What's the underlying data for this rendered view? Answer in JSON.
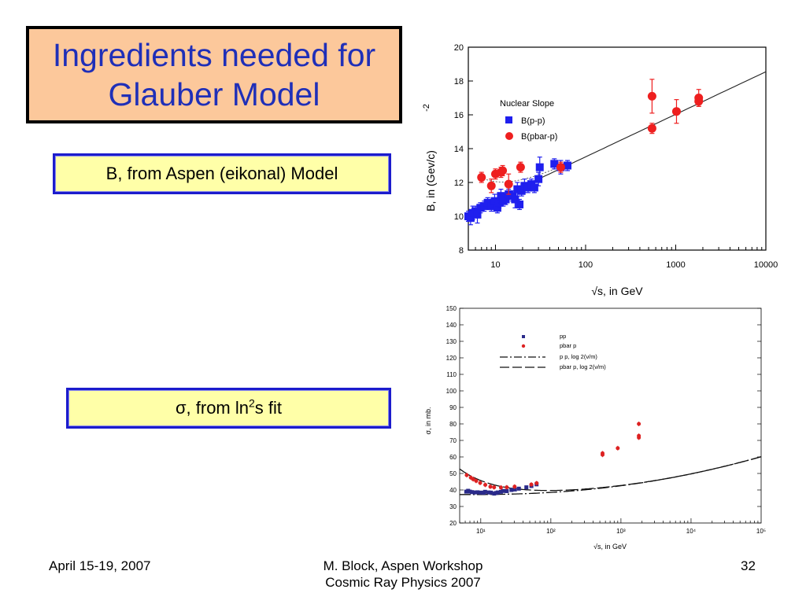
{
  "slide": {
    "title_line1": "Ingredients needed for",
    "title_line2": "Glauber Model",
    "box_b_text": "B, from Aspen (eikonal) Model",
    "box_sigma_symbol": "σ",
    "box_sigma_mid": ", from ln",
    "box_sigma_sup": "2",
    "box_sigma_end": "s fit"
  },
  "footer": {
    "date": "April 15-19, 2007",
    "center_line1": "M. Block, Aspen Workshop",
    "center_line2": "Cosmic Ray Physics 2007",
    "page": "32"
  },
  "chart_data": [
    {
      "type": "scatter",
      "xlabel": "√s, in GeV",
      "ylabel": "B, in (Gev/c)",
      "ylabel_exponent": "-2",
      "x_scale": "log",
      "xlim": [
        5,
        10000
      ],
      "ylim": [
        8,
        20
      ],
      "x_ticks": [
        10,
        100,
        1000,
        10000
      ],
      "x_tick_labels": [
        "10",
        "100",
        "1000",
        "10000"
      ],
      "y_ticks": [
        8,
        10,
        12,
        14,
        16,
        18,
        20
      ],
      "y_tick_labels": [
        "8",
        "10",
        "12",
        "14",
        "16",
        "18",
        "20"
      ],
      "legend_title": "Nuclear Slope",
      "legend_position": "upper-left",
      "series": [
        {
          "name": "B(p-p)",
          "color": "#1f1fee",
          "marker": "square",
          "points": [
            [
              5.0,
              10.0,
              0.3
            ],
            [
              5.3,
              9.9,
              0.4
            ],
            [
              5.6,
              10.2,
              0.4
            ],
            [
              6.0,
              10.3,
              0.3
            ],
            [
              6.3,
              10.1,
              0.5
            ],
            [
              6.8,
              10.5,
              0.3
            ],
            [
              7.5,
              10.6,
              0.3
            ],
            [
              8.2,
              10.8,
              0.3
            ],
            [
              9.0,
              10.6,
              0.3
            ],
            [
              9.8,
              10.9,
              0.4
            ],
            [
              10.5,
              10.5,
              0.3
            ],
            [
              11.0,
              10.8,
              0.3
            ],
            [
              11.5,
              11.2,
              0.4
            ],
            [
              12.2,
              10.9,
              0.3
            ],
            [
              13.0,
              11.0,
              0.3
            ],
            [
              14.0,
              11.3,
              0.3
            ],
            [
              15.5,
              11.2,
              0.3
            ],
            [
              16.5,
              11.0,
              0.5
            ],
            [
              17.5,
              11.6,
              0.4
            ],
            [
              18.5,
              10.7,
              0.3
            ],
            [
              19.5,
              11.5,
              0.3
            ],
            [
              21.0,
              11.8,
              0.4
            ],
            [
              23.0,
              11.7,
              0.3
            ],
            [
              25.0,
              11.9,
              0.3
            ],
            [
              27.0,
              11.7,
              0.3
            ],
            [
              30.0,
              12.2,
              0.4
            ],
            [
              31.0,
              12.9,
              0.6
            ],
            [
              45.0,
              13.1,
              0.3
            ],
            [
              53.0,
              12.9,
              0.4
            ],
            [
              63.0,
              13.0,
              0.3
            ]
          ]
        },
        {
          "name": "B(pbar-p)",
          "color": "#ee1f1f",
          "marker": "circle",
          "points": [
            [
              7.0,
              12.3,
              0.3
            ],
            [
              9.0,
              11.8,
              0.4
            ],
            [
              10.0,
              12.5,
              0.3
            ],
            [
              11.5,
              12.6,
              0.3
            ],
            [
              12.0,
              12.7,
              0.3
            ],
            [
              14.0,
              11.9,
              0.6
            ],
            [
              19.0,
              12.9,
              0.3
            ],
            [
              53.0,
              12.9,
              0.3
            ],
            [
              546.0,
              17.1,
              1.0
            ],
            [
              546.0,
              15.2,
              0.3
            ],
            [
              1020.0,
              16.2,
              0.7
            ],
            [
              1800.0,
              16.8,
              0.3
            ],
            [
              1800.0,
              17.0,
              0.5
            ]
          ]
        }
      ]
    },
    {
      "type": "scatter",
      "xlabel": "√s, in GeV",
      "ylabel": "σ, in mb.",
      "x_scale": "log",
      "xlim": [
        5,
        100000
      ],
      "ylim": [
        20,
        150
      ],
      "x_tick_labels": [
        "10¹",
        "10²",
        "10³",
        "10⁴",
        "10⁵"
      ],
      "y_ticks": [
        20,
        30,
        40,
        50,
        60,
        70,
        80,
        90,
        100,
        110,
        120,
        130,
        140,
        150
      ],
      "legend_position": "upper-left",
      "series": [
        {
          "name": "pp",
          "color": "#2a2a8a",
          "marker": "square",
          "points": [
            [
              6.2,
              39.0
            ],
            [
              6.6,
              39.5
            ],
            [
              7.0,
              39.0
            ],
            [
              7.5,
              38.7
            ],
            [
              8.2,
              38.5
            ],
            [
              9.0,
              38.6
            ],
            [
              10.0,
              38.4
            ],
            [
              11.0,
              38.3
            ],
            [
              11.5,
              38.9
            ],
            [
              13.0,
              38.5
            ],
            [
              14.0,
              38.4
            ],
            [
              15.5,
              37.8
            ],
            [
              16.5,
              38.2
            ],
            [
              17.5,
              38.5
            ],
            [
              19.4,
              38.9
            ],
            [
              21.0,
              39.4
            ],
            [
              23.5,
              39.3
            ],
            [
              27.4,
              40.0
            ],
            [
              30.7,
              40.3
            ],
            [
              35.0,
              40.8
            ],
            [
              44.7,
              41.6
            ],
            [
              52.8,
              42.4
            ],
            [
              62.5,
              43.4
            ]
          ]
        },
        {
          "name": "pbar p",
          "color": "#dd2222",
          "marker": "circle",
          "points": [
            [
              6.3,
              49.0
            ],
            [
              7.2,
              47.5
            ],
            [
              7.8,
              46.5
            ],
            [
              8.6,
              45.5
            ],
            [
              9.8,
              44.3
            ],
            [
              11.6,
              43.1
            ],
            [
              13.7,
              42.0
            ],
            [
              15.5,
              41.6
            ],
            [
              19.4,
              41.5
            ],
            [
              23.5,
              41.6
            ],
            [
              30.4,
              42.0
            ],
            [
              52.6,
              43.3
            ],
            [
              62.7,
              44.1
            ],
            [
              546.0,
              61.3
            ],
            [
              546.0,
              62.2
            ],
            [
              900.0,
              65.3
            ],
            [
              1800.0,
              72.8
            ],
            [
              1800.0,
              71.7
            ],
            [
              1800.0,
              80.0
            ]
          ]
        }
      ],
      "fit_lines": [
        {
          "name": "p p,     log  2(ν/m)",
          "style": "dash-dot",
          "params": [
            35.5,
            0.308,
            42.5,
            5.5,
            0.0,
            0.5
          ]
        },
        {
          "name": "pbar p, log  2(ν/m)",
          "style": "dashed",
          "params": [
            35.5,
            0.308,
            42.5,
            5.5,
            0.0,
            0.5
          ]
        }
      ]
    }
  ]
}
